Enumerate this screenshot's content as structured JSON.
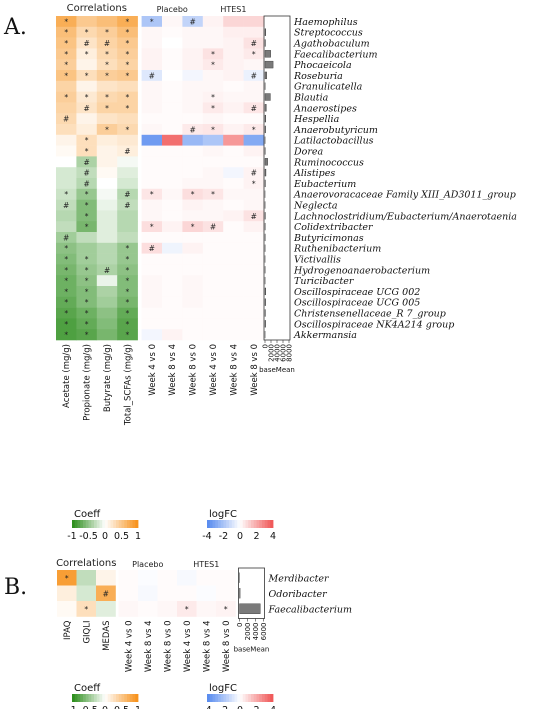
{
  "chart_data": [
    {
      "panel_label": "A.",
      "type": "heatmap",
      "rows": [
        "Haemophilus",
        "Streptococcus",
        "Agathobaculum",
        "Faecalibacterium",
        "Phocaeicola",
        "Roseburia",
        "Granulicatella",
        "Blautia",
        "Anaerostipes",
        "Hespellia",
        "Anaerobutyricum",
        "Latilactobacillus",
        "Dorea",
        "Ruminococcus",
        "Alistipes",
        "Eubacterium",
        "Anaerovoracaceae Family XIII_AD3011_group",
        "Neglecta",
        "Lachnoclostridium/Eubacterium/Anaerotaenia",
        "Colidextribacter",
        "Butyricimonas",
        "Ruthenibacterium",
        "Victivallis",
        "Hydrogenoanaerobacterium",
        "Turicibacter",
        "Oscillospiraceae UCG 002",
        "Oscillospiraceae UCG 005",
        "Christensenellaceae_R 7_group",
        "Oscillospiraceae NK4A214 group",
        "Akkermansia"
      ],
      "correlations": {
        "header": "Correlations",
        "columns": [
          "Acetate (mg/g)",
          "Propionate (mg/g)",
          "Butyrate (mg/g)",
          "Total_SCFAs (mg/g)"
        ],
        "values": [
          [
            0.75,
            0.5,
            0.6,
            0.75
          ],
          [
            0.6,
            0.35,
            0.45,
            0.6
          ],
          [
            0.55,
            0.25,
            0.4,
            0.5
          ],
          [
            0.5,
            0.15,
            0.35,
            0.45
          ],
          [
            0.45,
            0.1,
            0.3,
            0.4
          ],
          [
            0.55,
            0.3,
            0.45,
            0.5
          ],
          [
            0.4,
            0.1,
            0.25,
            0.3
          ],
          [
            0.45,
            0.2,
            0.35,
            0.4
          ],
          [
            0.4,
            0.25,
            0.4,
            0.4
          ],
          [
            0.35,
            0.1,
            0.25,
            0.3
          ],
          [
            0.3,
            0.15,
            0.45,
            0.35
          ],
          [
            0.1,
            0.3,
            0.15,
            0.2
          ],
          [
            0.05,
            0.3,
            0.1,
            0.15
          ],
          [
            0.0,
            -0.4,
            0.1,
            -0.05
          ],
          [
            -0.2,
            -0.3,
            0.05,
            -0.15
          ],
          [
            -0.2,
            -0.35,
            0.0,
            -0.2
          ],
          [
            -0.25,
            -0.5,
            -0.05,
            -0.35
          ],
          [
            -0.3,
            -0.6,
            -0.1,
            -0.3
          ],
          [
            -0.35,
            -0.6,
            -0.15,
            -0.35
          ],
          [
            -0.3,
            -0.65,
            -0.15,
            -0.35
          ],
          [
            -0.45,
            -0.3,
            -0.15,
            -0.3
          ],
          [
            -0.55,
            -0.45,
            -0.35,
            -0.5
          ],
          [
            -0.6,
            -0.45,
            -0.35,
            -0.5
          ],
          [
            -0.65,
            -0.5,
            -0.4,
            -0.55
          ],
          [
            -0.7,
            -0.55,
            -0.1,
            -0.6
          ],
          [
            -0.7,
            -0.6,
            -0.4,
            -0.6
          ],
          [
            -0.75,
            -0.6,
            -0.45,
            -0.65
          ],
          [
            -0.8,
            -0.7,
            -0.55,
            -0.75
          ],
          [
            -0.85,
            -0.75,
            -0.6,
            -0.8
          ],
          [
            -0.85,
            -0.8,
            -0.65,
            -0.8
          ]
        ],
        "marks": [
          [
            "*",
            "",
            "",
            "*"
          ],
          [
            "*",
            "*",
            "*",
            "*"
          ],
          [
            "*",
            "#",
            "#",
            "*"
          ],
          [
            "*",
            "*",
            "*",
            "*"
          ],
          [
            "*",
            "",
            "*",
            "*"
          ],
          [
            "*",
            "*",
            "*",
            "*"
          ],
          [
            "",
            "",
            "",
            ""
          ],
          [
            "*",
            "*",
            "*",
            "*"
          ],
          [
            "",
            "#",
            "*",
            "*"
          ],
          [
            "#",
            "",
            "",
            ""
          ],
          [
            "",
            "",
            "*",
            "*"
          ],
          [
            "",
            "*",
            "",
            ""
          ],
          [
            "",
            "*",
            "",
            "#"
          ],
          [
            "",
            "#",
            "",
            ""
          ],
          [
            "",
            "#",
            "",
            ""
          ],
          [
            "",
            "#",
            "",
            ""
          ],
          [
            "*",
            "*",
            "",
            "#"
          ],
          [
            "#",
            "*",
            "",
            "#"
          ],
          [
            "",
            "*",
            "",
            ""
          ],
          [
            "",
            "*",
            "",
            ""
          ],
          [
            "#",
            "",
            "",
            ""
          ],
          [
            "*",
            "",
            "",
            "*"
          ],
          [
            "*",
            "*",
            "",
            "*"
          ],
          [
            "*",
            "*",
            "#",
            "*"
          ],
          [
            "*",
            "*",
            "",
            "*"
          ],
          [
            "*",
            "*",
            "",
            "*"
          ],
          [
            "*",
            "*",
            "",
            "*"
          ],
          [
            "*",
            "*",
            "",
            "*"
          ],
          [
            "*",
            "*",
            "",
            "*"
          ],
          [
            "*",
            "*",
            "",
            "*"
          ]
        ]
      },
      "logfc": {
        "group_headers": [
          "Placebo",
          "HTES1"
        ],
        "columns": [
          "Week 4 vs 0",
          "Week 8 vs 4",
          "Week 8 vs 0",
          "Week 4 vs 0",
          "Week 8 vs 4",
          "Week 8 vs 0"
        ],
        "values": [
          [
            -2,
            0.2,
            -1.5,
            0.3,
            1,
            1
          ],
          [
            0.2,
            0.1,
            0.2,
            0.2,
            0.4,
            0.4
          ],
          [
            0.2,
            0,
            0.2,
            0.2,
            0.3,
            0.7
          ],
          [
            0.3,
            0.1,
            0.3,
            0.7,
            0.3,
            0.5
          ],
          [
            0.3,
            0.1,
            0.3,
            0.5,
            0.3,
            0.2
          ],
          [
            -0.8,
            0,
            -0.3,
            0.2,
            0.3,
            -0.5
          ],
          [
            0.2,
            0.1,
            0.2,
            0.2,
            0.1,
            0.2
          ],
          [
            0.2,
            0.1,
            0.2,
            0.3,
            0.2,
            0.2
          ],
          [
            0.2,
            0.1,
            0.2,
            0.5,
            0.3,
            0.6
          ],
          [
            0.1,
            0.1,
            0.1,
            0.2,
            0.1,
            0.1
          ],
          [
            0.2,
            0.1,
            0.5,
            0.6,
            0.3,
            0.5
          ],
          [
            -3.5,
            3.5,
            -2.5,
            -2,
            2.5,
            -3
          ],
          [
            0.1,
            0.1,
            0.1,
            0.2,
            0.1,
            0.3
          ],
          [
            0.1,
            0.1,
            0.1,
            0.1,
            0.1,
            0.1
          ],
          [
            0.1,
            0.1,
            0.1,
            0.2,
            -0.3,
            0.3
          ],
          [
            0.1,
            0.1,
            0.2,
            0.2,
            0.1,
            0.3
          ],
          [
            0.6,
            0.2,
            0.8,
            0.6,
            0.2,
            0.2
          ],
          [
            0.2,
            0.1,
            0.3,
            0.2,
            0.1,
            0.2
          ],
          [
            0.2,
            0.1,
            0.2,
            0.2,
            0.3,
            0.7
          ],
          [
            0.8,
            0.3,
            1,
            0.7,
            0.1,
            0.3
          ],
          [
            0.1,
            0.1,
            0.1,
            0.1,
            0.1,
            0.1
          ],
          [
            0.8,
            -0.4,
            0.3,
            0.1,
            0.1,
            0.1
          ],
          [
            0.1,
            0.1,
            0.1,
            0.1,
            0.1,
            0.1
          ],
          [
            0.1,
            0.1,
            0.1,
            0.1,
            0.1,
            0.1
          ],
          [
            0.2,
            0.1,
            0.2,
            0.1,
            0.1,
            0.1
          ],
          [
            0.2,
            0.1,
            0.2,
            0.1,
            0.1,
            0.1
          ],
          [
            0.2,
            0.1,
            0.2,
            0.1,
            0.1,
            0.1
          ],
          [
            0.1,
            0.1,
            0.1,
            0.1,
            0.1,
            0.1
          ],
          [
            0.1,
            0.1,
            0.1,
            0.1,
            0.1,
            0.1
          ],
          [
            -0.3,
            0.3,
            0.1,
            0.1,
            0.1,
            0.1
          ]
        ],
        "marks": [
          [
            "*",
            "",
            "#",
            "",
            "",
            ""
          ],
          [
            "",
            "",
            "",
            "",
            "",
            ""
          ],
          [
            "",
            "",
            "",
            "",
            "",
            "#"
          ],
          [
            "",
            "",
            "",
            "*",
            "",
            "*"
          ],
          [
            "",
            "",
            "",
            "*",
            "",
            ""
          ],
          [
            "#",
            "",
            "",
            "",
            "",
            "#"
          ],
          [
            "",
            "",
            "",
            "",
            "",
            ""
          ],
          [
            "",
            "",
            "",
            "*",
            "",
            ""
          ],
          [
            "",
            "",
            "",
            "*",
            "",
            "#"
          ],
          [
            "",
            "",
            "",
            "",
            "",
            ""
          ],
          [
            "",
            "",
            "#",
            "*",
            "",
            "*"
          ],
          [
            "",
            "",
            "",
            "",
            "",
            ""
          ],
          [
            "",
            "",
            "",
            "",
            "",
            ""
          ],
          [
            "",
            "",
            "",
            "",
            "",
            ""
          ],
          [
            "",
            "",
            "",
            "",
            "",
            "#"
          ],
          [
            "",
            "",
            "",
            "",
            "",
            "*"
          ],
          [
            "*",
            "",
            "*",
            "*",
            "",
            ""
          ],
          [
            "",
            "",
            "",
            "",
            "",
            ""
          ],
          [
            "",
            "",
            "",
            "",
            "",
            "#"
          ],
          [
            "*",
            "",
            "*",
            "#",
            "",
            ""
          ],
          [
            "",
            "",
            "",
            "",
            "",
            ""
          ],
          [
            "#",
            "",
            "",
            "",
            "",
            ""
          ],
          [
            "",
            "",
            "",
            "",
            "",
            ""
          ],
          [
            "",
            "",
            "",
            "",
            "",
            ""
          ],
          [
            "",
            "",
            "",
            "",
            "",
            ""
          ],
          [
            "",
            "",
            "",
            "",
            "",
            ""
          ],
          [
            "",
            "",
            "",
            "",
            "",
            ""
          ],
          [
            "",
            "",
            "",
            "",
            "",
            ""
          ],
          [
            "",
            "",
            "",
            "",
            "",
            ""
          ],
          [
            "",
            "",
            "",
            "",
            "",
            ""
          ]
        ]
      },
      "basemean": {
        "label": "baseMean",
        "ticks": [
          "0",
          "2000",
          "4000",
          "6000",
          "8000"
        ],
        "xlim": [
          0,
          8000
        ],
        "values": [
          0,
          250,
          150,
          1900,
          2700,
          600,
          50,
          1800,
          450,
          250,
          200,
          30,
          90,
          900,
          320,
          120,
          15,
          35,
          110,
          80,
          80,
          45,
          25,
          50,
          35,
          250,
          200,
          120,
          200,
          30
        ]
      },
      "legends": {
        "coeff": {
          "title": "Coeff",
          "ticks": [
            "-1",
            "-0.5",
            "0",
            "0.5",
            "1"
          ]
        },
        "logfc": {
          "title": "logFC",
          "ticks": [
            "-4",
            "-2",
            "0",
            "2",
            "4"
          ]
        }
      }
    },
    {
      "panel_label": "B.",
      "type": "heatmap",
      "rows": [
        "Merdibacter",
        "Odoribacter",
        "Faecalibacterium"
      ],
      "correlations": {
        "header": "Correlations",
        "columns": [
          "IPAQ",
          "GIQLI",
          "MEDAS"
        ],
        "values": [
          [
            0.9,
            -0.3,
            0.1
          ],
          [
            0.15,
            -0.2,
            0.75
          ],
          [
            0.05,
            0.3,
            -0.15
          ]
        ],
        "marks": [
          [
            "*",
            "",
            ""
          ],
          [
            "",
            "",
            "#"
          ],
          [
            "",
            "*",
            ""
          ]
        ]
      },
      "logfc": {
        "group_headers": [
          "Placebo",
          "HTES1"
        ],
        "columns": [
          "Week 4 vs 0",
          "Week 8 vs 4",
          "Week 8 vs 0",
          "Week 4 vs 0",
          "Week 8 vs 4",
          "Week 8 vs 0"
        ],
        "values": [
          [
            0.1,
            -0.1,
            0.1,
            -0.2,
            0.1,
            0.1
          ],
          [
            0.1,
            -0.2,
            0.1,
            0.1,
            -0.1,
            0.1
          ],
          [
            0.2,
            0.1,
            0.2,
            0.5,
            0.2,
            0.3
          ]
        ],
        "marks": [
          [
            "",
            "",
            "",
            "",
            "",
            ""
          ],
          [
            "",
            "",
            "",
            "",
            "",
            ""
          ],
          [
            "",
            "",
            "",
            "*",
            "",
            "*"
          ]
        ]
      },
      "basemean": {
        "label": "baseMean",
        "ticks": [
          "0",
          "2000",
          "4000",
          "6000"
        ],
        "xlim": [
          0,
          6000
        ],
        "values": [
          20,
          150,
          5200
        ]
      },
      "legends": {
        "coeff": {
          "title": "Coeff",
          "ticks": [
            "-1",
            "-0.5",
            "0",
            "0.5",
            "1"
          ]
        },
        "logfc": {
          "title": "logFC",
          "ticks": [
            "-4",
            "-2",
            "0",
            "2",
            "4"
          ]
        }
      }
    }
  ],
  "colors": {
    "corr_negative": "#2f8f1f",
    "corr_neutral": "#ffffff",
    "corr_positive": "#f7931e",
    "logfc_negative": "#5b8def",
    "logfc_neutral": "#ffffff",
    "logfc_positive": "#f05a5a",
    "bar_fill": "#7a7a7a"
  }
}
